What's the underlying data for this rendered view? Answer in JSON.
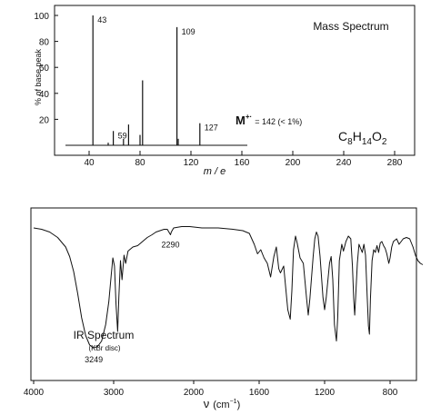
{
  "chart_data": [
    {
      "type": "bar",
      "title": "Mass Spectrum",
      "xlabel": "m / e",
      "ylabel": "% of base peak",
      "xlim": [
        0,
        320
      ],
      "ylim": [
        0,
        105
      ],
      "xticks": [
        40,
        80,
        120,
        160,
        200,
        240,
        280
      ],
      "yticks": [
        20,
        40,
        60,
        80,
        100
      ],
      "peaks": [
        {
          "x": 43,
          "y": 100,
          "label": "43"
        },
        {
          "x": 55,
          "y": 2,
          "label": ""
        },
        {
          "x": 59,
          "y": 11,
          "label": "59"
        },
        {
          "x": 67,
          "y": 5,
          "label": ""
        },
        {
          "x": 71,
          "y": 16,
          "label": ""
        },
        {
          "x": 80,
          "y": 8,
          "label": ""
        },
        {
          "x": 82,
          "y": 50,
          "label": ""
        },
        {
          "x": 109,
          "y": 91,
          "label": "109"
        },
        {
          "x": 110,
          "y": 5,
          "label": ""
        },
        {
          "x": 127,
          "y": 17,
          "label": "127"
        }
      ],
      "annotations": {
        "molecular_ion_symbol": "M",
        "molecular_ion_charge": "+·",
        "molecular_ion_text": "= 142 (< 1%)",
        "formula_c": "C",
        "formula_c_sub": "8",
        "formula_h": "H",
        "formula_h_sub": "14",
        "formula_o": "O",
        "formula_o_sub": "2"
      }
    },
    {
      "type": "line",
      "title": "IR Spectrum",
      "subtitle": "(KBr disc)",
      "xlabel_main": "ν",
      "xlabel_unit": "(cm",
      "xlabel_exp": "−1",
      "xlabel_close": ")",
      "xlim": [
        4000,
        600
      ],
      "ylim": [
        0,
        100
      ],
      "xticks": [
        4000,
        3000,
        2000,
        1600,
        1200,
        800
      ],
      "annotations": [
        {
          "x": 3249,
          "y": 8,
          "label": "3249"
        },
        {
          "x": 2290,
          "y": 91,
          "label": "2290"
        }
      ],
      "series": [
        {
          "points": [
            [
              4000,
              96
            ],
            [
              3900,
              95
            ],
            [
              3800,
              93
            ],
            [
              3700,
              89
            ],
            [
              3600,
              82
            ],
            [
              3550,
              75
            ],
            [
              3500,
              64
            ],
            [
              3450,
              48
            ],
            [
              3400,
              30
            ],
            [
              3350,
              17
            ],
            [
              3300,
              10
            ],
            [
              3249,
              8
            ],
            [
              3200,
              9
            ],
            [
              3150,
              13
            ],
            [
              3100,
              25
            ],
            [
              3060,
              42
            ],
            [
              3030,
              62
            ],
            [
              3010,
              74
            ],
            [
              2990,
              68
            ],
            [
              2970,
              40
            ],
            [
              2950,
              20
            ],
            [
              2935,
              45
            ],
            [
              2915,
              72
            ],
            [
              2895,
              58
            ],
            [
              2870,
              76
            ],
            [
              2850,
              70
            ],
            [
              2820,
              79
            ],
            [
              2760,
              82
            ],
            [
              2700,
              83
            ],
            [
              2640,
              86
            ],
            [
              2580,
              89
            ],
            [
              2520,
              91
            ],
            [
              2470,
              93
            ],
            [
              2420,
              94
            ],
            [
              2370,
              95
            ],
            [
              2330,
              95
            ],
            [
              2300,
              92
            ],
            [
              2290,
              91
            ],
            [
              2280,
              93
            ],
            [
              2250,
              96
            ],
            [
              2150,
              97
            ],
            [
              2050,
              97
            ],
            [
              1950,
              96
            ],
            [
              1850,
              96
            ],
            [
              1760,
              95
            ],
            [
              1700,
              94
            ],
            [
              1660,
              92
            ],
            [
              1630,
              84
            ],
            [
              1610,
              77
            ],
            [
              1590,
              80
            ],
            [
              1570,
              74
            ],
            [
              1550,
              70
            ],
            [
              1530,
              60
            ],
            [
              1510,
              75
            ],
            [
              1495,
              82
            ],
            [
              1480,
              66
            ],
            [
              1470,
              63
            ],
            [
              1450,
              68
            ],
            [
              1440,
              55
            ],
            [
              1425,
              36
            ],
            [
              1410,
              29
            ],
            [
              1400,
              50
            ],
            [
              1390,
              80
            ],
            [
              1378,
              90
            ],
            [
              1368,
              85
            ],
            [
              1350,
              74
            ],
            [
              1330,
              70
            ],
            [
              1310,
              44
            ],
            [
              1300,
              32
            ],
            [
              1290,
              44
            ],
            [
              1270,
              75
            ],
            [
              1260,
              88
            ],
            [
              1250,
              93
            ],
            [
              1240,
              90
            ],
            [
              1228,
              75
            ],
            [
              1210,
              45
            ],
            [
              1200,
              36
            ],
            [
              1190,
              45
            ],
            [
              1170,
              70
            ],
            [
              1160,
              75
            ],
            [
              1150,
              58
            ],
            [
              1140,
              25
            ],
            [
              1128,
              13
            ],
            [
              1120,
              30
            ],
            [
              1110,
              72
            ],
            [
              1095,
              84
            ],
            [
              1085,
              79
            ],
            [
              1070,
              86
            ],
            [
              1055,
              90
            ],
            [
              1040,
              88
            ],
            [
              1030,
              68
            ],
            [
              1022,
              44
            ],
            [
              1016,
              32
            ],
            [
              1010,
              46
            ],
            [
              1000,
              70
            ],
            [
              990,
              84
            ],
            [
              980,
              81
            ],
            [
              970,
              78
            ],
            [
              960,
              84
            ],
            [
              950,
              76
            ],
            [
              940,
              46
            ],
            [
              932,
              24
            ],
            [
              926,
              18
            ],
            [
              920,
              44
            ],
            [
              910,
              72
            ],
            [
              900,
              80
            ],
            [
              890,
              78
            ],
            [
              880,
              83
            ],
            [
              870,
              78
            ],
            [
              860,
              85
            ],
            [
              850,
              86
            ],
            [
              840,
              83
            ],
            [
              830,
              81
            ],
            [
              820,
              77
            ],
            [
              808,
              70
            ],
            [
              800,
              74
            ],
            [
              790,
              82
            ],
            [
              780,
              86
            ],
            [
              760,
              88
            ],
            [
              745,
              84
            ],
            [
              720,
              88
            ],
            [
              700,
              89
            ],
            [
              680,
              88
            ],
            [
              660,
              82
            ],
            [
              645,
              76
            ],
            [
              630,
              72
            ],
            [
              615,
              70
            ],
            [
              600,
              69
            ]
          ]
        }
      ]
    }
  ]
}
